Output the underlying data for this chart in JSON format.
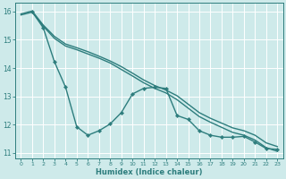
{
  "xlabel": "Humidex (Indice chaleur)",
  "bg_color": "#ceeaea",
  "grid_color": "#ffffff",
  "line_color": "#2d7d7d",
  "xlim": [
    -0.5,
    23.5
  ],
  "ylim": [
    10.8,
    16.3
  ],
  "yticks": [
    11,
    12,
    13,
    14,
    15,
    16
  ],
  "xticks": [
    0,
    1,
    2,
    3,
    4,
    5,
    6,
    7,
    8,
    9,
    10,
    11,
    12,
    13,
    14,
    15,
    16,
    17,
    18,
    19,
    20,
    21,
    22,
    23
  ],
  "series": [
    {
      "x": [
        0,
        1,
        2,
        3,
        4,
        5,
        6,
        7,
        8,
        9,
        10,
        11,
        12,
        13,
        14,
        15,
        16,
        17,
        18,
        19,
        20,
        21,
        22,
        23
      ],
      "y": [
        15.92,
        16.02,
        15.52,
        15.12,
        14.85,
        14.72,
        14.58,
        14.42,
        14.25,
        14.05,
        13.82,
        13.58,
        13.38,
        13.22,
        13.02,
        12.72,
        12.42,
        12.22,
        12.05,
        11.88,
        11.78,
        11.62,
        11.35,
        11.22
      ],
      "marker": false,
      "lw": 1.0
    },
    {
      "x": [
        0,
        1,
        2,
        3,
        4,
        5,
        6,
        7,
        8,
        9,
        10,
        11,
        12,
        13,
        14,
        15,
        16,
        17,
        18,
        19,
        20,
        21,
        22,
        23
      ],
      "y": [
        15.88,
        15.98,
        15.48,
        15.05,
        14.78,
        14.65,
        14.5,
        14.35,
        14.18,
        13.95,
        13.72,
        13.48,
        13.28,
        13.12,
        12.88,
        12.58,
        12.28,
        12.08,
        11.9,
        11.72,
        11.62,
        11.45,
        11.18,
        11.05
      ],
      "marker": false,
      "lw": 1.0
    },
    {
      "x": [
        1,
        2,
        3,
        4,
        5,
        6,
        7,
        8,
        9,
        10,
        11,
        12,
        13,
        14,
        15,
        16,
        17,
        18,
        19,
        20,
        21,
        22,
        23
      ],
      "y": [
        16.0,
        15.42,
        14.22,
        13.32,
        11.92,
        11.62,
        11.78,
        12.02,
        12.42,
        13.08,
        13.28,
        13.32,
        13.28,
        12.32,
        12.18,
        11.78,
        11.62,
        11.55,
        11.55,
        11.58,
        11.38,
        11.15,
        11.12
      ],
      "marker": true,
      "lw": 1.0
    }
  ]
}
